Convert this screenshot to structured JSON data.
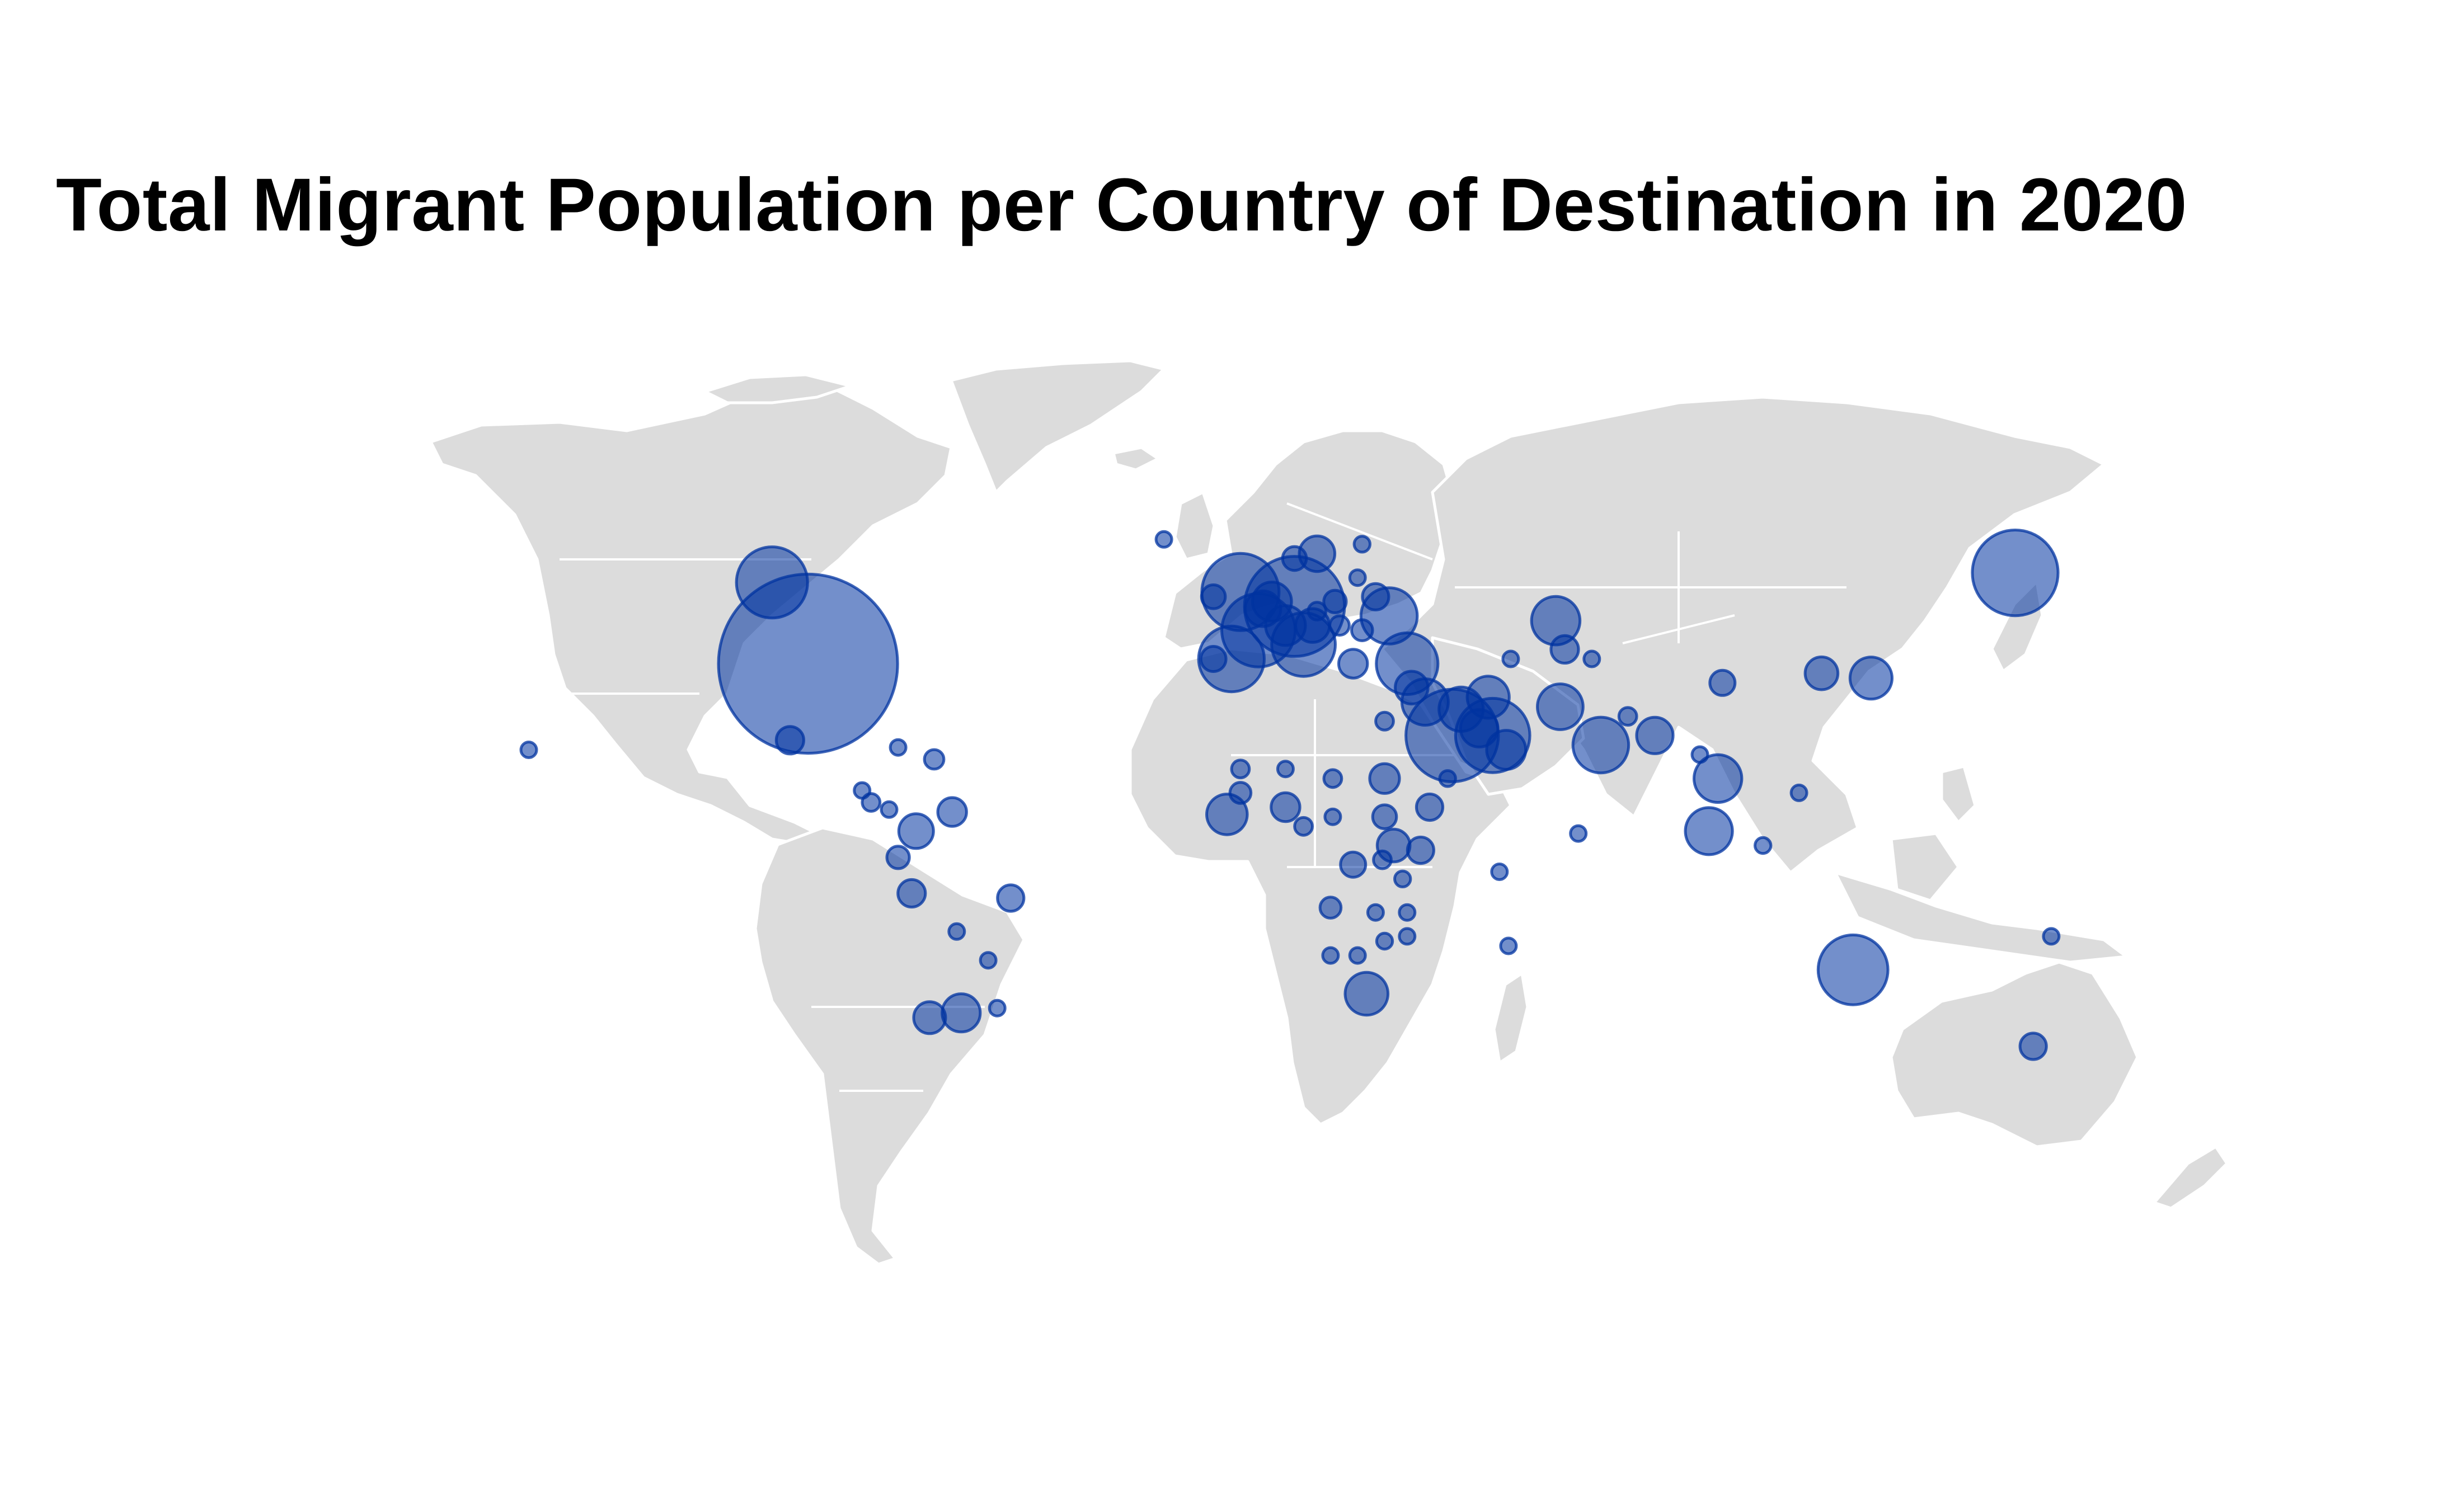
{
  "title": "Total Migrant Population per Country of Destination in 2020",
  "colors": {
    "background": "#ffffff",
    "land": "#dcdcdc",
    "border": "#ffffff",
    "bubble": "#0033a0"
  },
  "chart_data": {
    "type": "bubble-map",
    "projection": "equirectangular",
    "metric": "total international migrant stock (estimated, millions)",
    "points": [
      {
        "lon": -98,
        "lat": 39,
        "value": 50.6
      },
      {
        "lon": -106,
        "lat": 56,
        "value": 8.0
      },
      {
        "lon": -102,
        "lat": 23,
        "value": 1.2
      },
      {
        "lon": 170,
        "lat": 58,
        "value": 11.6
      },
      {
        "lon": 10,
        "lat": 51,
        "value": 15.8
      },
      {
        "lon": -2,
        "lat": 54,
        "value": 9.4
      },
      {
        "lon": 2,
        "lat": 46,
        "value": 8.5
      },
      {
        "lon": -4,
        "lat": 40,
        "value": 6.8
      },
      {
        "lon": 12,
        "lat": 43,
        "value": 6.4
      },
      {
        "lon": 45,
        "lat": 24,
        "value": 13.5
      },
      {
        "lon": 54,
        "lat": 24,
        "value": 8.7
      },
      {
        "lon": 35,
        "lat": 39,
        "value": 6.0
      },
      {
        "lon": 68,
        "lat": 48,
        "value": 3.7
      },
      {
        "lon": 78,
        "lat": 22,
        "value": 4.9
      },
      {
        "lon": 134,
        "lat": -25,
        "value": 7.7
      },
      {
        "lon": 39,
        "lat": 31,
        "value": 3.4
      },
      {
        "lon": 69,
        "lat": 30,
        "value": 3.3
      },
      {
        "lon": 31,
        "lat": 49,
        "value": 5.0
      },
      {
        "lon": 138,
        "lat": 36,
        "value": 2.8
      },
      {
        "lon": 127,
        "lat": 37,
        "value": 1.7
      },
      {
        "lon": 104,
        "lat": 15,
        "value": 3.6
      },
      {
        "lon": 102,
        "lat": 4,
        "value": 3.5
      },
      {
        "lon": 114,
        "lat": 1,
        "value": 0.4
      },
      {
        "lon": 8,
        "lat": 47,
        "value": 2.5
      },
      {
        "lon": 14,
        "lat": 47,
        "value": 1.8
      },
      {
        "lon": 5,
        "lat": 52,
        "value": 2.4
      },
      {
        "lon": 15,
        "lat": 62,
        "value": 2.0
      },
      {
        "lon": 10,
        "lat": 61,
        "value": 0.9
      },
      {
        "lon": 25,
        "lat": 64,
        "value": 0.4
      },
      {
        "lon": 3,
        "lat": 50.5,
        "value": 2.0
      },
      {
        "lon": -8,
        "lat": 53,
        "value": 0.9
      },
      {
        "lon": -8,
        "lat": 40,
        "value": 1.0
      },
      {
        "lon": 19,
        "lat": 52,
        "value": 0.8
      },
      {
        "lon": 15,
        "lat": 50,
        "value": 0.5
      },
      {
        "lon": 20,
        "lat": 47,
        "value": 0.6
      },
      {
        "lon": 25,
        "lat": 46,
        "value": 0.7
      },
      {
        "lon": 23,
        "lat": 39,
        "value": 1.3
      },
      {
        "lon": 28,
        "lat": 53,
        "value": 1.1
      },
      {
        "lon": 24,
        "lat": 57,
        "value": 0.3
      },
      {
        "lon": 47,
        "lat": 29.5,
        "value": 3.1
      },
      {
        "lon": 51,
        "lat": 25.5,
        "value": 2.2
      },
      {
        "lon": 57,
        "lat": 21,
        "value": 2.4
      },
      {
        "lon": 36,
        "lat": 34,
        "value": 1.7
      },
      {
        "lon": 53,
        "lat": 32,
        "value": 2.8
      },
      {
        "lon": 44,
        "lat": 15,
        "value": 0.4
      },
      {
        "lon": 40,
        "lat": 9,
        "value": 1.1
      },
      {
        "lon": 30,
        "lat": 15,
        "value": 1.4
      },
      {
        "lon": 30,
        "lat": 27,
        "value": 0.5
      },
      {
        "lon": 30,
        "lat": 7,
        "value": 0.9
      },
      {
        "lon": 38,
        "lat": 0,
        "value": 1.1
      },
      {
        "lon": 32,
        "lat": 1,
        "value": 1.7
      },
      {
        "lon": 34,
        "lat": -6,
        "value": 0.4
      },
      {
        "lon": 29.5,
        "lat": -2,
        "value": 0.5
      },
      {
        "lon": 23,
        "lat": -3,
        "value": 1.0
      },
      {
        "lon": 18.5,
        "lat": 7,
        "value": 0.1
      },
      {
        "lon": 18.5,
        "lat": 15,
        "value": 0.5
      },
      {
        "lon": 8,
        "lat": 17,
        "value": 0.3
      },
      {
        "lon": -2,
        "lat": 17,
        "value": 0.5
      },
      {
        "lon": -2,
        "lat": 12,
        "value": 0.7
      },
      {
        "lon": -5,
        "lat": 7.5,
        "value": 2.6
      },
      {
        "lon": 8,
        "lat": 9,
        "value": 1.3
      },
      {
        "lon": 12,
        "lat": 5,
        "value": 0.5
      },
      {
        "lon": 26,
        "lat": -30,
        "value": 2.9
      },
      {
        "lon": 24,
        "lat": -22,
        "value": 0.1
      },
      {
        "lon": 30,
        "lat": -19,
        "value": 0.4
      },
      {
        "lon": 28,
        "lat": -13,
        "value": 0.2
      },
      {
        "lon": 35,
        "lat": -13,
        "value": 0.2
      },
      {
        "lon": 35,
        "lat": -18,
        "value": 0.3
      },
      {
        "lon": 18,
        "lat": -12,
        "value": 0.7
      },
      {
        "lon": 18,
        "lat": -22,
        "value": 0.1
      },
      {
        "lon": -66,
        "lat": 8,
        "value": 1.3
      },
      {
        "lon": -74,
        "lat": 4,
        "value": 1.9
      },
      {
        "lon": -78,
        "lat": -1.5,
        "value": 0.8
      },
      {
        "lon": -75,
        "lat": -9,
        "value": 1.2
      },
      {
        "lon": -65,
        "lat": -17,
        "value": 0.2
      },
      {
        "lon": -58,
        "lat": -23,
        "value": 0.2
      },
      {
        "lon": -53,
        "lat": -10,
        "value": 1.1
      },
      {
        "lon": -64,
        "lat": -34,
        "value": 2.3
      },
      {
        "lon": -71,
        "lat": -35,
        "value": 1.6
      },
      {
        "lon": -56,
        "lat": -33,
        "value": 0.1
      },
      {
        "lon": -84,
        "lat": 10,
        "value": 0.5
      },
      {
        "lon": -80,
        "lat": 8.5,
        "value": 0.3
      },
      {
        "lon": -86,
        "lat": 12.5,
        "value": 0.1
      },
      {
        "lon": -70,
        "lat": 19,
        "value": 0.6
      },
      {
        "lon": -78,
        "lat": 21.5,
        "value": 0.1
      },
      {
        "lon": 174,
        "lat": -41,
        "value": 1.1
      },
      {
        "lon": 105,
        "lat": 35,
        "value": 1.0
      },
      {
        "lon": 122,
        "lat": 12,
        "value": 0.2
      },
      {
        "lon": 90,
        "lat": 24,
        "value": 2.1
      },
      {
        "lon": 84,
        "lat": 28,
        "value": 0.5
      },
      {
        "lon": 100,
        "lat": 20,
        "value": 0.1
      },
      {
        "lon": 70,
        "lat": 42,
        "value": 1.2
      },
      {
        "lon": 58,
        "lat": 40,
        "value": 0.2
      },
      {
        "lon": 76,
        "lat": 40,
        "value": 0.2
      },
      {
        "lon": -19,
        "lat": 65,
        "value": 0.1
      },
      {
        "lon": 57.5,
        "lat": -20,
        "value": 0.03
      },
      {
        "lon": 55.5,
        "lat": -4.5,
        "value": 0.01
      },
      {
        "lon": 73,
        "lat": 3.5,
        "value": 0.07
      },
      {
        "lon": 178,
        "lat": -18,
        "value": 0.01
      },
      {
        "lon": -160,
        "lat": 21,
        "value": 0.01
      }
    ]
  }
}
